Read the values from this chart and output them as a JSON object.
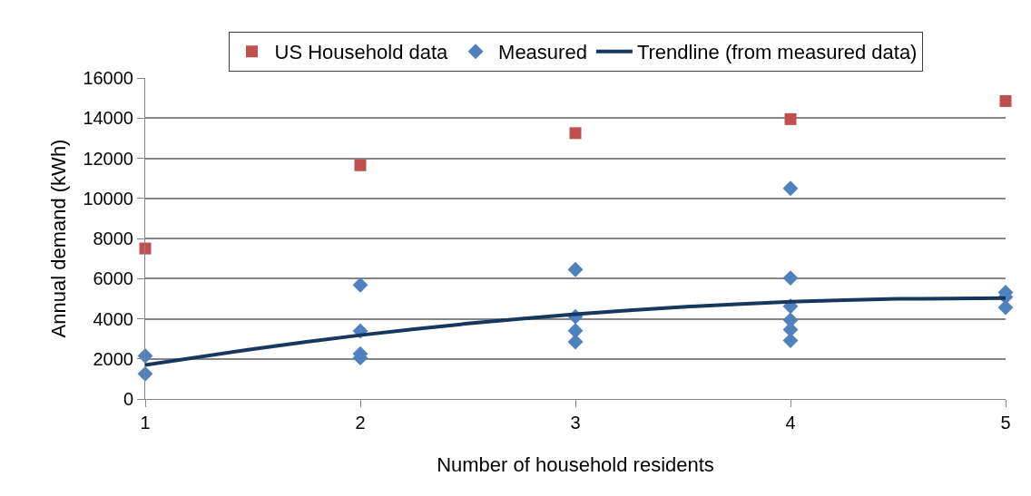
{
  "chart_data": {
    "type": "scatter",
    "xlabel": "Number of household residents",
    "ylabel": "Annual demand (kWh)",
    "xlim": [
      1,
      5
    ],
    "xticks": [
      1,
      2,
      3,
      4,
      5
    ],
    "ylim": [
      0,
      16000
    ],
    "yticks": [
      0,
      2000,
      4000,
      6000,
      8000,
      10000,
      12000,
      14000,
      16000
    ],
    "grid": "y",
    "legend": "top",
    "series": [
      {
        "name": "US Household data",
        "marker": "square",
        "color": "#c0504d",
        "x": [
          1,
          2,
          3,
          4,
          5
        ],
        "values": [
          7500,
          11650,
          13250,
          13950,
          14850
        ]
      },
      {
        "name": "Measured",
        "marker": "diamond",
        "color": "#4f81bd",
        "x": [
          1,
          1,
          2,
          2,
          2,
          2,
          3,
          3,
          3,
          3,
          4,
          4,
          4,
          4,
          4,
          4,
          5,
          5,
          5
        ],
        "values": [
          2150,
          1250,
          5680,
          3390,
          2250,
          2050,
          6450,
          4100,
          3400,
          2850,
          10500,
          6030,
          4620,
          3930,
          3460,
          2910,
          5310,
          5080,
          4560
        ]
      },
      {
        "name": "Trendline (from measured data)",
        "type": "line",
        "marker": "none",
        "line_style": "solid",
        "color": "#17375e",
        "x": [
          1,
          1.5,
          2,
          2.5,
          3,
          3.5,
          4,
          4.5,
          5
        ],
        "values": [
          1690,
          2490,
          3180,
          3760,
          4230,
          4590,
          4850,
          4990,
          5030
        ]
      }
    ]
  }
}
